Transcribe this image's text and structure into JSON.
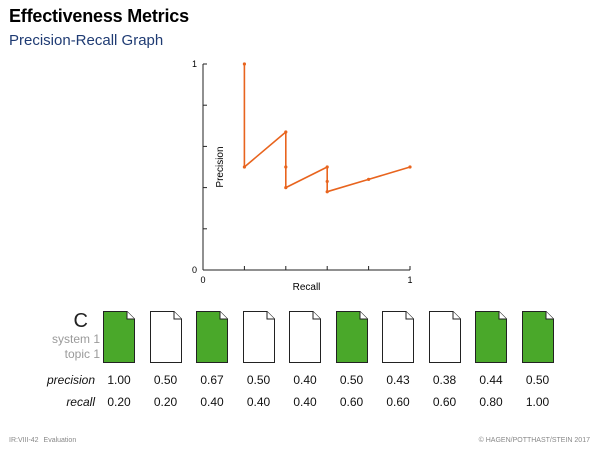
{
  "slide": {
    "title": "Effectiveness Metrics",
    "subtitle": "Precision-Recall Graph"
  },
  "legend": {
    "letter": "C",
    "system": "system 1",
    "topic": "topic 1"
  },
  "documents": [
    {
      "relevant": true
    },
    {
      "relevant": false
    },
    {
      "relevant": true
    },
    {
      "relevant": false
    },
    {
      "relevant": false
    },
    {
      "relevant": true
    },
    {
      "relevant": false
    },
    {
      "relevant": false
    },
    {
      "relevant": true
    },
    {
      "relevant": true
    }
  ],
  "colors": {
    "relevant": "#4aa82a",
    "line": "#e8641e",
    "subtitle": "#1f3b73"
  },
  "table": {
    "precision_label": "precision",
    "recall_label": "recall",
    "precision": [
      "1.00",
      "0.50",
      "0.67",
      "0.50",
      "0.40",
      "0.50",
      "0.43",
      "0.38",
      "0.44",
      "0.50"
    ],
    "recall": [
      "0.20",
      "0.20",
      "0.40",
      "0.40",
      "0.40",
      "0.60",
      "0.60",
      "0.60",
      "0.80",
      "1.00"
    ]
  },
  "chart_data": {
    "type": "line",
    "xlabel": "Recall",
    "ylabel": "Precision",
    "xlim": [
      0,
      1
    ],
    "ylim": [
      0,
      1
    ],
    "x_tick_labels": [
      "0",
      "1"
    ],
    "y_tick_labels": [
      "0",
      "1"
    ],
    "x": [
      0.2,
      0.2,
      0.4,
      0.4,
      0.4,
      0.6,
      0.6,
      0.6,
      0.8,
      1.0
    ],
    "y": [
      1.0,
      0.5,
      0.67,
      0.5,
      0.4,
      0.5,
      0.43,
      0.38,
      0.44,
      0.5
    ]
  },
  "footer": {
    "left_code": "IR:VIII-42",
    "left_section": "Evaluation",
    "right": "© HAGEN/POTTHAST/STEIN 2017"
  }
}
